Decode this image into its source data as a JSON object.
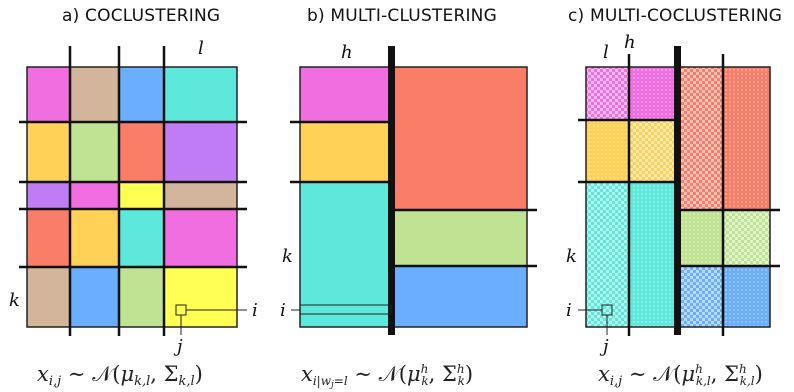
{
  "panels": {
    "a": {
      "title": "a) COCLUSTERING",
      "label_l": "l",
      "label_k": "k",
      "label_i": "i",
      "label_j": "j",
      "formula": "x_{i,j} ~ N(μ_{k,l}, Σ_{k,l})"
    },
    "b": {
      "title": "b) MULTI-CLUSTERING",
      "label_h": "h",
      "label_k": "k",
      "label_i": "i",
      "formula": "x_{i|w_j=l} ~ N(μ^h_k, Σ^h_k)"
    },
    "c": {
      "title": "c) MULTI-COCLUSTERING",
      "label_l": "l",
      "label_h": "h",
      "label_k": "k",
      "label_i": "i",
      "label_j": "j",
      "formula": "x_{i,j} ~ N(μ^h_{k,l}, Σ^h_{k,l})"
    }
  },
  "colors": {
    "magenta": "#f06ee0",
    "tan": "#d2b59a",
    "blue": "#6aaeff",
    "cyan": "#5ee8dc",
    "orange": "#ffd257",
    "green": "#bfe393",
    "red": "#fa7d68",
    "purple": "#c07cf5",
    "yellow": "#ffff54"
  }
}
